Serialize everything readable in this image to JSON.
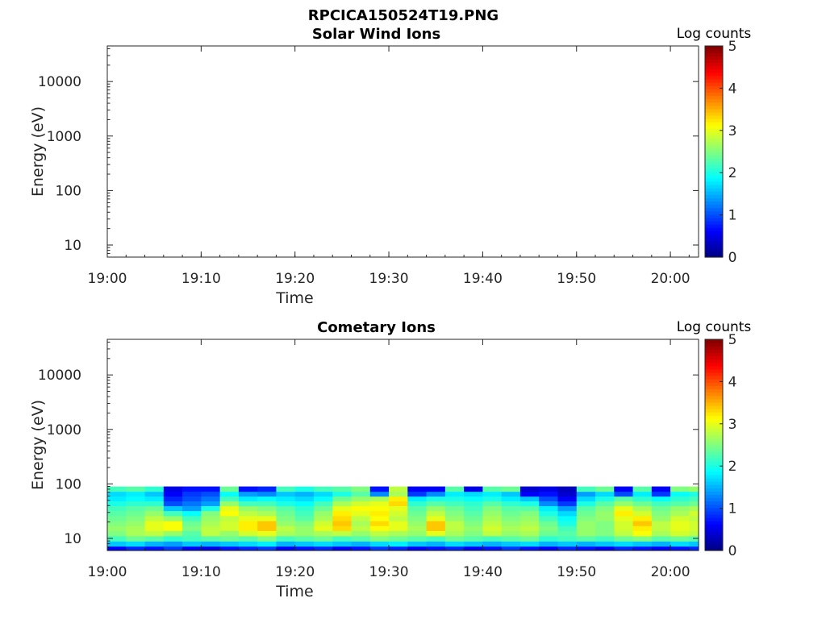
{
  "figure_title": "RPCICA150524T19.PNG",
  "colors": {
    "axis": "#262626",
    "background": "#ffffff",
    "colormap": "jet"
  },
  "chart_data": [
    {
      "type": "heatmap",
      "title": "Solar Wind Ions",
      "xlabel": "Time",
      "ylabel": "Energy (eV)",
      "yscale": "log",
      "ylim": [
        6,
        45000
      ],
      "xlim": [
        "19:00",
        "20:03"
      ],
      "x_ticks": [
        "19:00",
        "19:10",
        "19:20",
        "19:30",
        "19:40",
        "19:50",
        "20:00"
      ],
      "y_ticks": [
        "10",
        "100",
        "1000",
        "10000"
      ],
      "colorbar": {
        "label": "Log counts",
        "range": [
          0,
          5
        ],
        "ticks": [
          "0",
          "1",
          "2",
          "3",
          "4",
          "5"
        ]
      },
      "grid": false,
      "data": "empty"
    },
    {
      "type": "heatmap",
      "title": "Cometary Ions",
      "xlabel": "Time",
      "ylabel": "Energy (eV)",
      "yscale": "log",
      "ylim": [
        6,
        45000
      ],
      "xlim": [
        "19:00",
        "20:03"
      ],
      "x_ticks": [
        "19:00",
        "19:10",
        "19:20",
        "19:30",
        "19:40",
        "19:50",
        "20:00"
      ],
      "y_ticks": [
        "10",
        "100",
        "1000",
        "10000"
      ],
      "colorbar": {
        "label": "Log counts",
        "range": [
          0,
          5
        ],
        "ticks": [
          "0",
          "1",
          "2",
          "3",
          "4",
          "5"
        ]
      },
      "grid": false,
      "energy_bins_eV": [
        6.5,
        8,
        10,
        12.5,
        15.5,
        19,
        23.5,
        29,
        36,
        44,
        54,
        66,
        81
      ],
      "time_bins": [
        "19:00",
        "19:02",
        "19:04",
        "19:06",
        "19:08",
        "19:10",
        "19:12",
        "19:14",
        "19:16",
        "19:18",
        "19:20",
        "19:22",
        "19:24",
        "19:26",
        "19:28",
        "19:30",
        "19:32",
        "19:34",
        "19:36",
        "19:38",
        "19:40",
        "19:42",
        "19:44",
        "19:46",
        "19:48",
        "19:50",
        "19:52",
        "19:54",
        "19:56",
        "19:58",
        "20:00",
        "20:02"
      ],
      "log_counts": [
        [
          0.6,
          0.8,
          0.7,
          0.9,
          0.6,
          0.5,
          0.7,
          0.8,
          0.9,
          0.6,
          0.7,
          0.8,
          0.6,
          0.7,
          0.9,
          0.8,
          0.6,
          0.7,
          0.8,
          0.6,
          0.7,
          0.9,
          0.7,
          0.6,
          0.8,
          0.7,
          0.6,
          0.8,
          0.7,
          0.6,
          0.7,
          0.8
        ],
        [
          1.6,
          1.7,
          1.5,
          1.4,
          1.6,
          1.5,
          1.6,
          1.7,
          1.8,
          1.5,
          1.6,
          1.7,
          1.6,
          1.5,
          1.7,
          1.8,
          1.6,
          1.5,
          1.7,
          1.6,
          1.5,
          1.6,
          1.7,
          1.5,
          1.6,
          1.5,
          1.6,
          1.7,
          1.6,
          1.5,
          1.7,
          1.6
        ],
        [
          2.2,
          2.4,
          2.3,
          2.1,
          2.2,
          2.3,
          2.4,
          2.3,
          2.5,
          2.2,
          2.3,
          2.4,
          2.2,
          2.3,
          2.5,
          2.4,
          2.3,
          2.2,
          2.4,
          2.3,
          2.2,
          2.3,
          2.4,
          2.1,
          2.2,
          2.3,
          2.2,
          2.4,
          2.5,
          2.3,
          2.4,
          2.3
        ],
        [
          2.5,
          2.7,
          2.8,
          2.6,
          2.3,
          2.8,
          2.6,
          2.9,
          3.0,
          2.7,
          2.6,
          2.7,
          2.8,
          2.6,
          2.8,
          2.7,
          2.6,
          3.0,
          2.7,
          2.5,
          2.8,
          2.6,
          2.7,
          2.4,
          2.3,
          2.6,
          2.5,
          2.8,
          3.1,
          2.7,
          2.9,
          2.8
        ],
        [
          2.6,
          2.7,
          3.0,
          3.1,
          2.5,
          2.8,
          2.9,
          3.2,
          3.4,
          2.8,
          2.6,
          3.0,
          3.3,
          2.8,
          3.1,
          3.0,
          2.7,
          3.4,
          2.8,
          2.6,
          2.9,
          2.7,
          2.8,
          2.5,
          2.2,
          2.6,
          2.5,
          2.9,
          3.2,
          2.8,
          3.0,
          2.9
        ],
        [
          2.5,
          2.6,
          3.0,
          3.1,
          2.4,
          2.7,
          2.9,
          3.2,
          3.4,
          2.6,
          2.5,
          2.9,
          3.4,
          2.7,
          3.3,
          3.0,
          2.6,
          3.4,
          2.8,
          2.5,
          2.8,
          2.6,
          2.7,
          2.4,
          2.0,
          2.6,
          2.5,
          2.9,
          3.4,
          2.8,
          3.0,
          2.9
        ],
        [
          2.4,
          2.5,
          2.8,
          2.6,
          2.2,
          2.6,
          2.8,
          3.0,
          3.0,
          2.5,
          2.3,
          2.7,
          3.3,
          2.8,
          3.1,
          2.8,
          2.5,
          3.0,
          2.6,
          2.4,
          2.7,
          2.5,
          2.6,
          2.2,
          1.9,
          2.5,
          2.6,
          3.0,
          3.2,
          2.6,
          2.9,
          2.8
        ],
        [
          2.3,
          2.4,
          2.6,
          2.2,
          1.9,
          2.5,
          3.1,
          2.8,
          2.7,
          2.4,
          2.2,
          2.6,
          3.2,
          3.0,
          3.2,
          2.9,
          2.4,
          2.8,
          2.5,
          2.3,
          2.6,
          2.4,
          2.5,
          2.0,
          1.7,
          2.4,
          2.6,
          3.2,
          2.9,
          2.5,
          2.7,
          2.9
        ],
        [
          2.2,
          2.3,
          2.4,
          1.6,
          1.4,
          2.0,
          3.0,
          2.6,
          2.5,
          2.3,
          2.1,
          2.4,
          3.0,
          3.1,
          3.1,
          3.0,
          2.3,
          2.6,
          2.4,
          2.2,
          2.5,
          2.3,
          2.3,
          1.8,
          1.4,
          2.3,
          2.5,
          3.0,
          2.7,
          2.4,
          2.6,
          2.7
        ],
        [
          2.0,
          2.1,
          2.1,
          1.0,
          1.2,
          1.4,
          2.6,
          2.2,
          2.2,
          2.0,
          1.9,
          2.2,
          2.7,
          2.9,
          3.0,
          3.3,
          2.1,
          2.3,
          2.2,
          2.1,
          2.3,
          2.1,
          2.0,
          1.3,
          0.9,
          2.0,
          2.3,
          2.6,
          2.4,
          2.2,
          2.3,
          2.4
        ],
        [
          1.8,
          1.9,
          1.8,
          0.8,
          1.0,
          1.2,
          2.2,
          1.8,
          1.9,
          1.8,
          1.7,
          1.9,
          2.4,
          2.6,
          2.7,
          3.2,
          1.8,
          2.0,
          2.0,
          1.9,
          2.0,
          1.8,
          1.6,
          1.0,
          0.6,
          1.7,
          2.0,
          2.3,
          2.1,
          1.9,
          2.1,
          2.2
        ],
        [
          1.7,
          1.8,
          1.6,
          0.6,
          0.9,
          1.0,
          1.9,
          1.4,
          1.3,
          1.6,
          1.5,
          1.7,
          2.0,
          2.3,
          1.3,
          2.7,
          0.9,
          1.3,
          1.8,
          1.7,
          1.8,
          1.6,
          0.6,
          0.7,
          0.4,
          1.4,
          1.7,
          1.0,
          1.8,
          0.9,
          1.9,
          2.0
        ],
        [
          2.2,
          2.3,
          2.1,
          0.5,
          0.7,
          0.7,
          2.4,
          0.7,
          0.8,
          2.2,
          2.0,
          2.2,
          2.3,
          2.5,
          0.7,
          2.8,
          0.6,
          0.6,
          2.3,
          0.5,
          2.3,
          2.4,
          0.4,
          0.5,
          0.3,
          2.2,
          2.4,
          0.6,
          2.3,
          0.6,
          2.5,
          2.6
        ]
      ]
    }
  ]
}
